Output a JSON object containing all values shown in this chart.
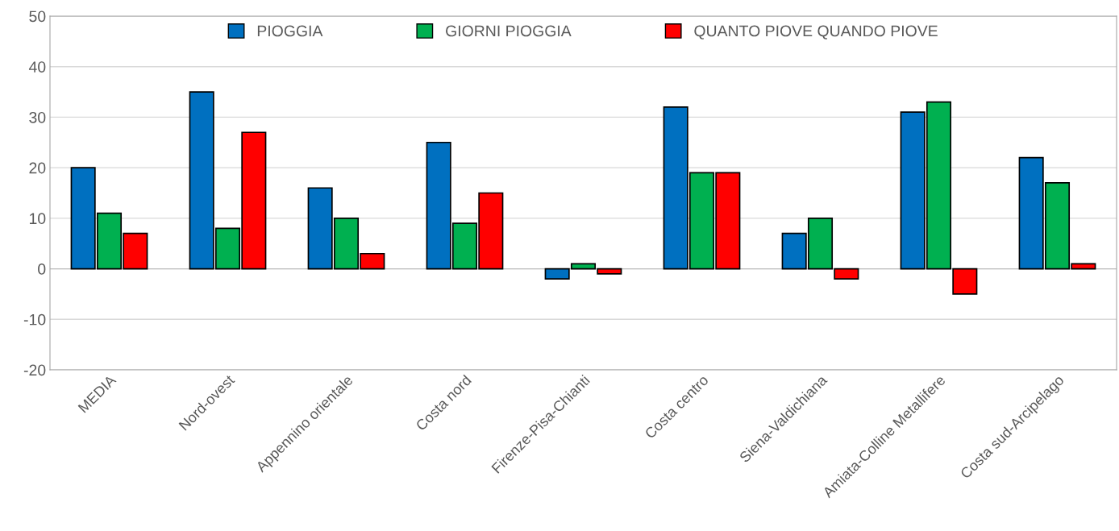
{
  "chart_data": {
    "type": "bar",
    "categories": [
      "MEDIA",
      "Nord-ovest",
      "Appennino orientale",
      "Costa nord",
      "Firenze-Pisa-Chianti",
      "Costa centro",
      "Siena-Valdichiana",
      "Amiata-Colline Metallifere",
      "Costa sud-Arcipelago"
    ],
    "series": [
      {
        "name": "PIOGGIA",
        "color": "#0070c0",
        "values": [
          20,
          35,
          16,
          25,
          -2,
          32,
          7,
          31,
          22
        ]
      },
      {
        "name": "GIORNI PIOGGIA",
        "color": "#00b050",
        "values": [
          11,
          8,
          10,
          9,
          1,
          19,
          10,
          33,
          17
        ]
      },
      {
        "name": "QUANTO PIOVE QUANDO PIOVE",
        "color": "#ff0000",
        "values": [
          7,
          27,
          3,
          15,
          -1,
          19,
          -2,
          -5,
          1
        ]
      }
    ],
    "ylim": [
      -20,
      50
    ],
    "yticks": [
      -20,
      -10,
      0,
      10,
      20,
      30,
      40,
      50
    ],
    "grid": "y",
    "legend": "top"
  }
}
